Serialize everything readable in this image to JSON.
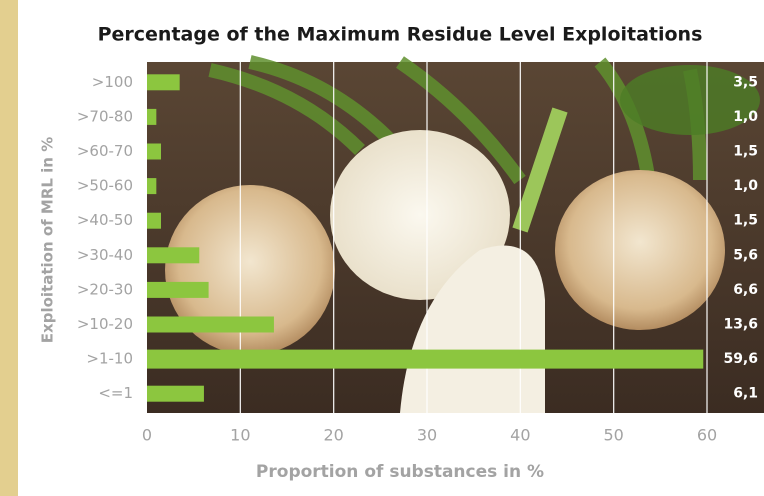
{
  "chart_data": {
    "type": "hbar",
    "title": "Percentage of the Maximum Residue Level Exploitations",
    "xlabel": "Proportion of substances in %",
    "ylabel": "Exploitation of MRL in %",
    "categories": [
      ">100",
      ">70-80",
      ">60-70",
      ">50-60",
      ">40-50",
      ">30-40",
      ">20-30",
      ">10-20",
      ">1-10",
      "<=1"
    ],
    "values": [
      3.5,
      1.0,
      1.5,
      1.0,
      1.5,
      5.6,
      6.6,
      13.6,
      59.6,
      6.1
    ],
    "value_labels": [
      "3,5",
      "1,0",
      "1,5",
      "1,0",
      "1,5",
      "5,6",
      "6,6",
      "13,6",
      "59,6",
      "6,1"
    ],
    "color": "#8cc63f",
    "xlim": [
      0,
      60
    ],
    "xticks": [
      0,
      10,
      20,
      30,
      40,
      50,
      60
    ],
    "grid": true
  }
}
